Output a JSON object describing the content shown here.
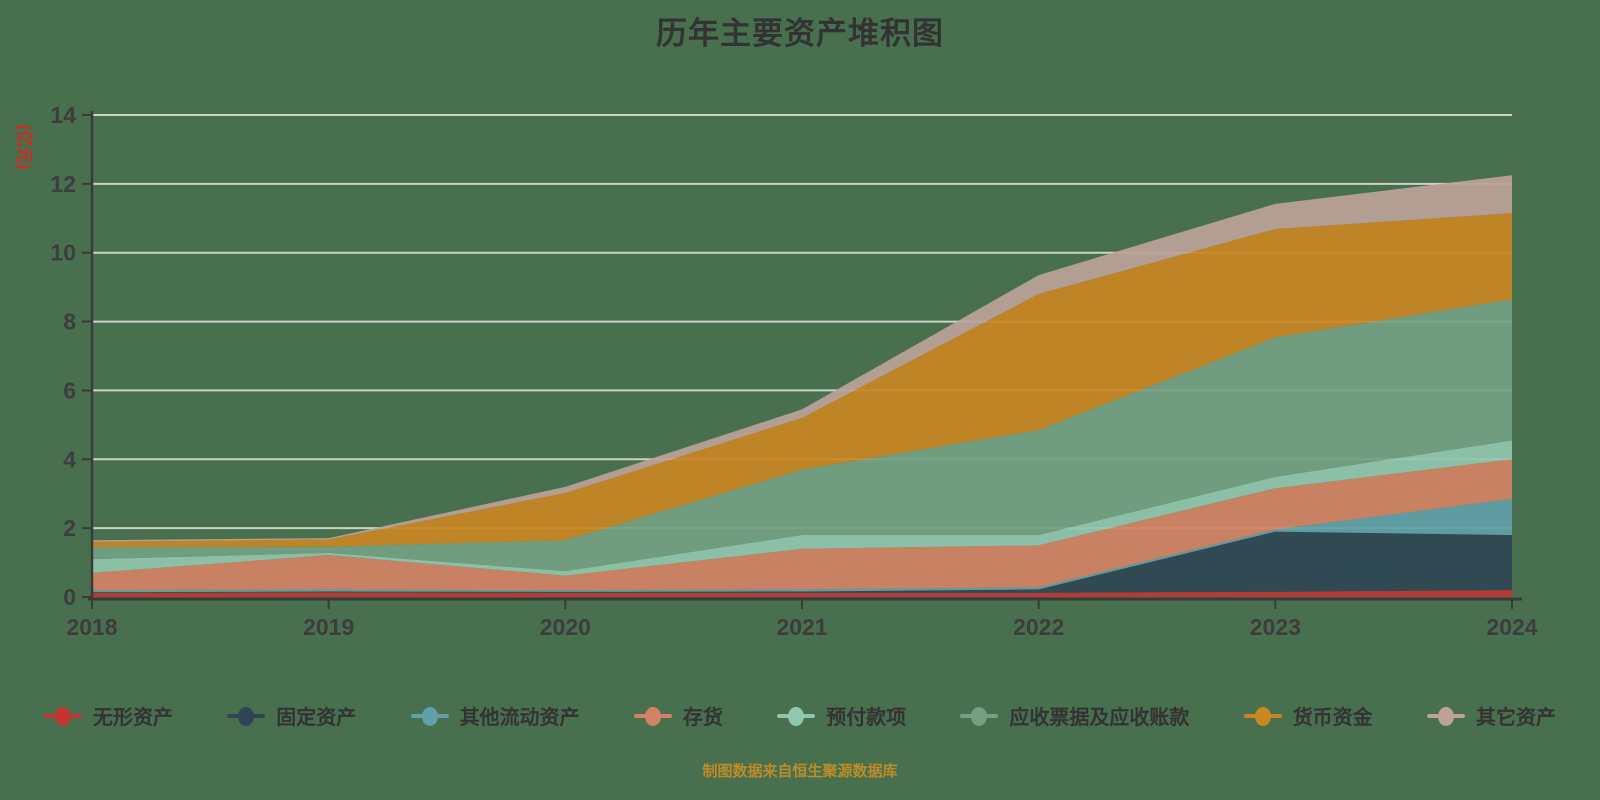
{
  "title": "历年主要资产堆积图",
  "source_note": "制图数据来自恒生聚源数据库",
  "colors": {
    "background": "#48704e",
    "gridline": "#ccd2ca",
    "axis": "#3a3a3a",
    "tick_label": "#3d3d3d",
    "title": "#333333",
    "ylabel": "#d02a22",
    "footer": "#bd8b27"
  },
  "chart_data": {
    "type": "area",
    "stacked": true,
    "title": "历年主要资产堆积图",
    "ylabel": "(亿元)",
    "xlabel": "",
    "x": [
      "2018",
      "2019",
      "2020",
      "2021",
      "2022",
      "2023",
      "2024"
    ],
    "ylim": [
      0,
      14
    ],
    "ytick_step": 2,
    "grid": true,
    "legend_position": "bottom",
    "area_opacity": 0.92,
    "series": [
      {
        "name": "无形资产",
        "color": "#c23531",
        "values": [
          0.12,
          0.13,
          0.12,
          0.12,
          0.12,
          0.15,
          0.2
        ]
      },
      {
        "name": "固定资产",
        "color": "#2f4554",
        "values": [
          0.02,
          0.03,
          0.03,
          0.04,
          0.1,
          1.75,
          1.6
        ]
      },
      {
        "name": "其他流动资产",
        "color": "#61a0a8",
        "values": [
          0.06,
          0.06,
          0.05,
          0.06,
          0.06,
          0.06,
          1.05
        ]
      },
      {
        "name": "存货",
        "color": "#d48265",
        "values": [
          0.5,
          1.0,
          0.42,
          1.18,
          1.22,
          1.2,
          1.15
        ]
      },
      {
        "name": "预付款项",
        "color": "#91c7ae",
        "values": [
          0.4,
          0.06,
          0.13,
          0.4,
          0.3,
          0.33,
          0.55
        ]
      },
      {
        "name": "应收票据及应收账款",
        "color": "#749f83",
        "values": [
          0.35,
          0.18,
          0.9,
          1.9,
          3.05,
          4.05,
          4.1
        ]
      },
      {
        "name": "货币资金",
        "color": "#ca8622",
        "values": [
          0.15,
          0.21,
          1.37,
          1.5,
          3.95,
          3.15,
          2.5
        ]
      },
      {
        "name": "其它资产",
        "color": "#bda29a",
        "values": [
          0.05,
          0.04,
          0.18,
          0.25,
          0.55,
          0.73,
          1.1
        ]
      }
    ]
  }
}
